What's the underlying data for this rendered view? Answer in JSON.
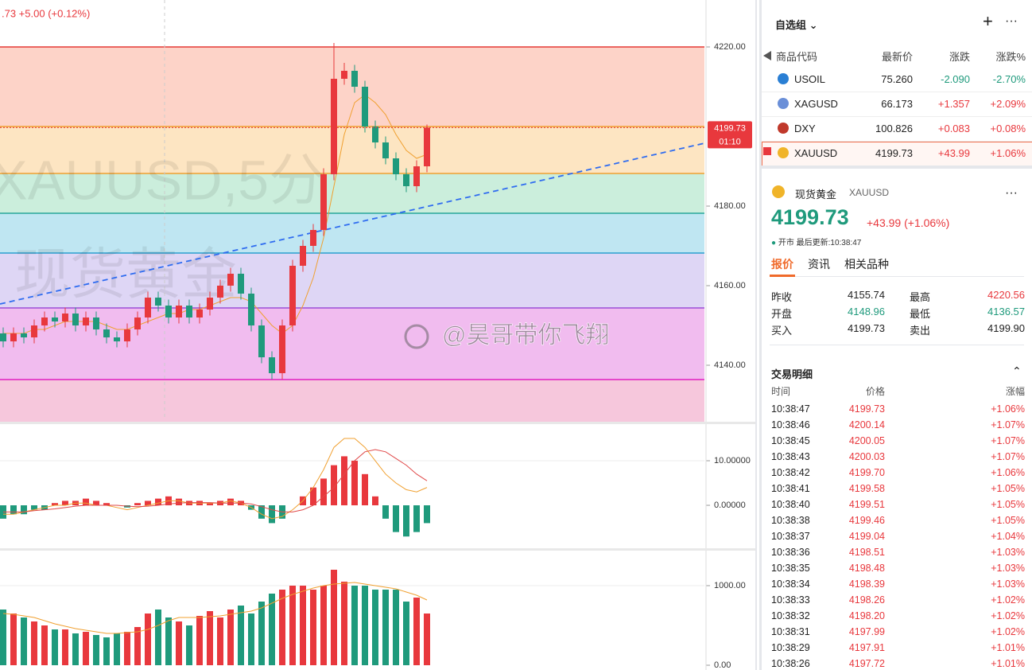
{
  "chart_data": [
    {
      "type": "candlestick",
      "header": ".73  +5.00 (+0.12%)",
      "watermark": [
        "XAUUSD,5分",
        "现货黄金"
      ],
      "credit": "@昊哥带你飞翔",
      "up_color": "#e8383d",
      "down_color": "#1f9a7c",
      "open": [
        4148,
        4146,
        4148,
        4147,
        4150,
        4152,
        4151,
        4153,
        4150,
        4152,
        4149,
        4147,
        4146,
        4149,
        4152,
        4157,
        4155,
        4152,
        4155,
        4152,
        4154,
        4157,
        4160,
        4163,
        4158,
        4150,
        4142,
        4138,
        4150,
        4165,
        4170,
        4174,
        4188,
        4212,
        4214,
        4210,
        4200,
        4196,
        4192,
        4188,
        4185,
        4190
      ],
      "high": [
        4149.5,
        4149.5,
        4149.5,
        4151.5,
        4153.5,
        4153.5,
        4154.5,
        4154.5,
        4153.5,
        4153.5,
        4150.5,
        4148.5,
        4150.5,
        4153.5,
        4158.5,
        4158.5,
        4156.5,
        4156.5,
        4156.5,
        4155.5,
        4158.5,
        4161.5,
        4164.5,
        4164.5,
        4159.5,
        4151.5,
        4143.5,
        4151.5,
        4166.5,
        4171.5,
        4175.5,
        4189.5,
        4221,
        4216,
        4215.5,
        4211.5,
        4201.5,
        4197.5,
        4193.5,
        4189.5,
        4191.5,
        4200.5
      ],
      "low": [
        4144.5,
        4144.5,
        4145.5,
        4145.5,
        4148.5,
        4149.5,
        4149.5,
        4148.5,
        4148.5,
        4147.5,
        4145.5,
        4144.5,
        4144.5,
        4147.5,
        4150.5,
        4153.5,
        4150.5,
        4150.5,
        4150.5,
        4150.5,
        4152.5,
        4155.5,
        4158.5,
        4156.5,
        4148.5,
        4140.5,
        4136.5,
        4136.5,
        4148.5,
        4163.5,
        4168.5,
        4172.5,
        4186.5,
        4210.5,
        4208.5,
        4198.5,
        4194.5,
        4190.5,
        4186.5,
        4183.5,
        4183.5,
        4188.5
      ],
      "close": [
        4146,
        4148,
        4147,
        4150,
        4152,
        4151,
        4153,
        4150,
        4152,
        4149,
        4147,
        4146,
        4149,
        4152,
        4157,
        4155,
        4152,
        4155,
        4152,
        4154,
        4157,
        4160,
        4163,
        4158,
        4150,
        4142,
        4138,
        4150,
        4165,
        4170,
        4174,
        4188,
        4212,
        4214,
        4210,
        4200,
        4196,
        4192,
        4188,
        4185,
        4190,
        4199.73
      ],
      "ma": {
        "color": "#f0a030",
        "values": [
          4148,
          4148,
          4148,
          4149,
          4149,
          4150,
          4151,
          4151,
          4151,
          4151,
          4150,
          4149,
          4149,
          4150,
          4151,
          4152,
          4153,
          4153,
          4154,
          4154,
          4155,
          4156,
          4157,
          4157,
          4156,
          4153,
          4150,
          4148,
          4150,
          4155,
          4162,
          4172,
          4185,
          4198,
          4206,
          4208,
          4206,
          4203,
          4198,
          4194,
          4192,
          4193
        ]
      },
      "ylim": [
        4126.2,
        4231
      ],
      "yticks": [
        {
          "value": 4220,
          "label": "4220.00"
        },
        {
          "value": 4180,
          "label": "4180.00"
        },
        {
          "value": 4160,
          "label": "4160.00"
        },
        {
          "value": 4140,
          "label": "4140.00"
        }
      ],
      "levels": [
        {
          "value": 4220,
          "color": "#e53935",
          "fill": "#fdd3c8"
        },
        {
          "value": 4200,
          "color": "#f0a030",
          "fill": "#fde5c2"
        },
        {
          "value": 4188.2,
          "color": "#f0a030",
          "fill": "#cbeedc"
        },
        {
          "value": 4178.2,
          "color": "#26a69a",
          "fill": "#bfe6f2"
        },
        {
          "value": 4168.2,
          "color": "#2a9fd0",
          "fill": "#ded6f5"
        },
        {
          "value": 4154.4,
          "color": "#9c4fd6",
          "fill": "#f1bcef"
        },
        {
          "value": 4136.4,
          "color": "#e020c0",
          "fill": "#f6c7dc"
        }
      ],
      "trendline": {
        "from": 4155.4,
        "to": 4195.8,
        "color": "#2f6cf0"
      },
      "last": 4199.73,
      "countdown": "01:10"
    },
    {
      "type": "macd",
      "ylim": [
        -9.46,
        17.86
      ],
      "yticks": [
        {
          "value": 10,
          "label": "10.00000"
        },
        {
          "value": 0,
          "label": "0.00000"
        }
      ],
      "series": [
        {
          "name": "MACD",
          "up_color": "#e8383d",
          "down_color": "#1f9a7c",
          "values": [
            -3,
            -2,
            -2,
            -1,
            -1,
            0.5,
            1,
            1,
            1.5,
            1,
            0.5,
            0,
            -0.5,
            0.5,
            1,
            1.5,
            2,
            1.5,
            1,
            1,
            0.5,
            1,
            1.5,
            1,
            -1,
            -3,
            -4,
            -3,
            0,
            2,
            4,
            6,
            9,
            11,
            10,
            7,
            2,
            -3,
            -6,
            -7,
            -6,
            -4
          ]
        },
        {
          "name": "DIF",
          "color": "#f0a030",
          "values": [
            -2,
            -2,
            -1.5,
            -1,
            -0.5,
            0,
            0,
            0.5,
            0.5,
            0,
            0,
            -0.5,
            -1,
            -0.5,
            0,
            0.5,
            1,
            1,
            0.5,
            0.5,
            0.5,
            0.5,
            1,
            0.5,
            -0.5,
            -2,
            -3,
            -2.5,
            -1,
            1,
            4,
            8,
            13,
            15,
            15,
            13,
            10,
            7,
            5,
            3.5,
            3,
            4
          ]
        },
        {
          "name": "DEA",
          "color": "#e04848",
          "values": [
            -1.5,
            -1.5,
            -1.5,
            -1.2,
            -1,
            -0.8,
            -0.5,
            -0.2,
            0,
            0,
            0,
            0,
            -0.2,
            -0.3,
            -0.2,
            0,
            0.3,
            0.5,
            0.6,
            0.6,
            0.6,
            0.5,
            0.5,
            0.5,
            0.3,
            -0.3,
            -1,
            -1.5,
            -1.5,
            -1,
            0,
            2,
            4,
            7,
            10,
            12,
            12.5,
            12,
            10.5,
            9,
            7,
            5.5
          ]
        }
      ]
    },
    {
      "type": "volume",
      "ylim": [
        0,
        1440
      ],
      "yticks": [
        {
          "value": 1000,
          "label": "1000.00"
        },
        {
          "value": 0,
          "label": "0.00"
        }
      ],
      "values": [
        700,
        650,
        600,
        550,
        500,
        450,
        450,
        400,
        420,
        380,
        350,
        400,
        420,
        480,
        650,
        700,
        600,
        550,
        500,
        620,
        680,
        600,
        700,
        750,
        650,
        800,
        900,
        950,
        1000,
        1000,
        950,
        1000,
        1200,
        1050,
        1000,
        1000,
        950,
        950,
        950,
        800,
        850,
        650
      ],
      "ma": {
        "color": "#f0a030",
        "values": [
          650,
          640,
          620,
          600,
          560,
          520,
          490,
          460,
          440,
          420,
          400,
          400,
          410,
          420,
          450,
          500,
          560,
          600,
          600,
          600,
          610,
          620,
          640,
          660,
          680,
          720,
          780,
          840,
          890,
          930,
          970,
          1000,
          1020,
          1030,
          1040,
          1020,
          1000,
          980,
          960,
          920,
          880,
          820
        ]
      }
    }
  ],
  "watchlist": {
    "title": "自选组",
    "columns": [
      "商品代码",
      "最新价",
      "涨跌",
      "涨跌%"
    ],
    "rows": [
      [
        "USOIL",
        "75.260",
        "-2.090",
        "-2.70%"
      ],
      [
        "XAGUSD",
        "66.173",
        "+1.357",
        "+2.09%"
      ],
      [
        "DXY",
        "100.826",
        "+0.083",
        "+0.08%"
      ],
      [
        "XAUUSD",
        "4199.73",
        "+43.99",
        "+1.06%"
      ]
    ]
  },
  "quote": {
    "name": "现货黄金",
    "code": "XAUUSD",
    "price": "4199.73",
    "change": "+43.99 (+1.06%)",
    "status": "开市",
    "updated": "最后更新:10:38:47",
    "tabs": [
      "报价",
      "资讯",
      "相关品种"
    ],
    "stats": [
      [
        "昨收",
        "4155.74",
        "最高",
        "4220.56"
      ],
      [
        "开盘",
        "4148.96",
        "最低",
        "4136.57"
      ],
      [
        "买入",
        "4199.73",
        "卖出",
        "4199.90"
      ]
    ]
  },
  "trades": {
    "title": "交易明细",
    "columns": [
      "时间",
      "价格",
      "涨幅"
    ],
    "rows": [
      [
        "10:38:47",
        "4199.73",
        "+1.06%"
      ],
      [
        "10:38:46",
        "4200.14",
        "+1.07%"
      ],
      [
        "10:38:45",
        "4200.05",
        "+1.07%"
      ],
      [
        "10:38:43",
        "4200.03",
        "+1.07%"
      ],
      [
        "10:38:42",
        "4199.70",
        "+1.06%"
      ],
      [
        "10:38:41",
        "4199.58",
        "+1.05%"
      ],
      [
        "10:38:40",
        "4199.51",
        "+1.05%"
      ],
      [
        "10:38:38",
        "4199.46",
        "+1.05%"
      ],
      [
        "10:38:37",
        "4199.04",
        "+1.04%"
      ],
      [
        "10:38:36",
        "4198.51",
        "+1.03%"
      ],
      [
        "10:38:35",
        "4198.48",
        "+1.03%"
      ],
      [
        "10:38:34",
        "4198.39",
        "+1.03%"
      ],
      [
        "10:38:33",
        "4198.26",
        "+1.02%"
      ],
      [
        "10:38:32",
        "4198.20",
        "+1.02%"
      ],
      [
        "10:38:31",
        "4197.99",
        "+1.02%"
      ],
      [
        "10:38:29",
        "4197.91",
        "+1.01%"
      ],
      [
        "10:38:26",
        "4197.72",
        "+1.01%"
      ]
    ]
  }
}
